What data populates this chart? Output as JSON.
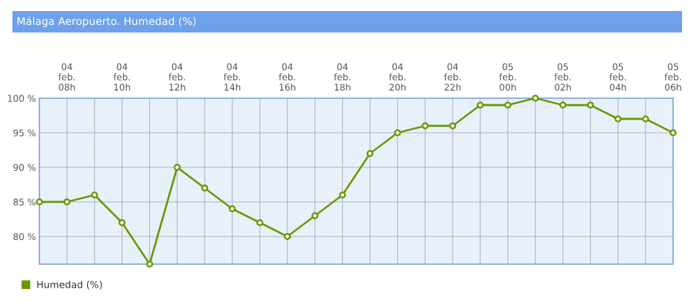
{
  "chart_data": {
    "type": "line",
    "title": "Málaga Aeropuerto. Humedad (%)",
    "categories": [
      null,
      "04\nfeb.\n08h",
      null,
      "04\nfeb.\n10h",
      null,
      "04\nfeb.\n12h",
      null,
      "04\nfeb.\n14h",
      null,
      "04\nfeb.\n16h",
      null,
      "04\nfeb.\n18h",
      null,
      "04\nfeb.\n20h",
      null,
      "04\nfeb.\n22h",
      null,
      "05\nfeb.\n00h",
      null,
      "05\nfeb.\n02h",
      null,
      "05\nfeb.\n04h",
      null,
      "05\nfeb.\n06h"
    ],
    "series": [
      {
        "name": "Humedad (%)",
        "color": "#669900",
        "values": [
          85,
          85,
          86,
          82,
          76,
          90,
          87,
          84,
          82,
          80,
          83,
          86,
          92,
          95,
          96,
          96,
          99,
          99,
          100,
          99,
          99,
          97,
          97,
          95
        ]
      }
    ],
    "ylim": [
      76,
      100
    ],
    "yticks": [
      {
        "value": 80,
        "label": "80 %"
      },
      {
        "value": 85,
        "label": "85 %"
      },
      {
        "value": 90,
        "label": "90 %"
      },
      {
        "value": 95,
        "label": "95 %"
      },
      {
        "value": 100,
        "label": "100 %"
      }
    ],
    "grid": true,
    "legend": "bottom left",
    "marker": "circle",
    "line_style": "solid"
  }
}
